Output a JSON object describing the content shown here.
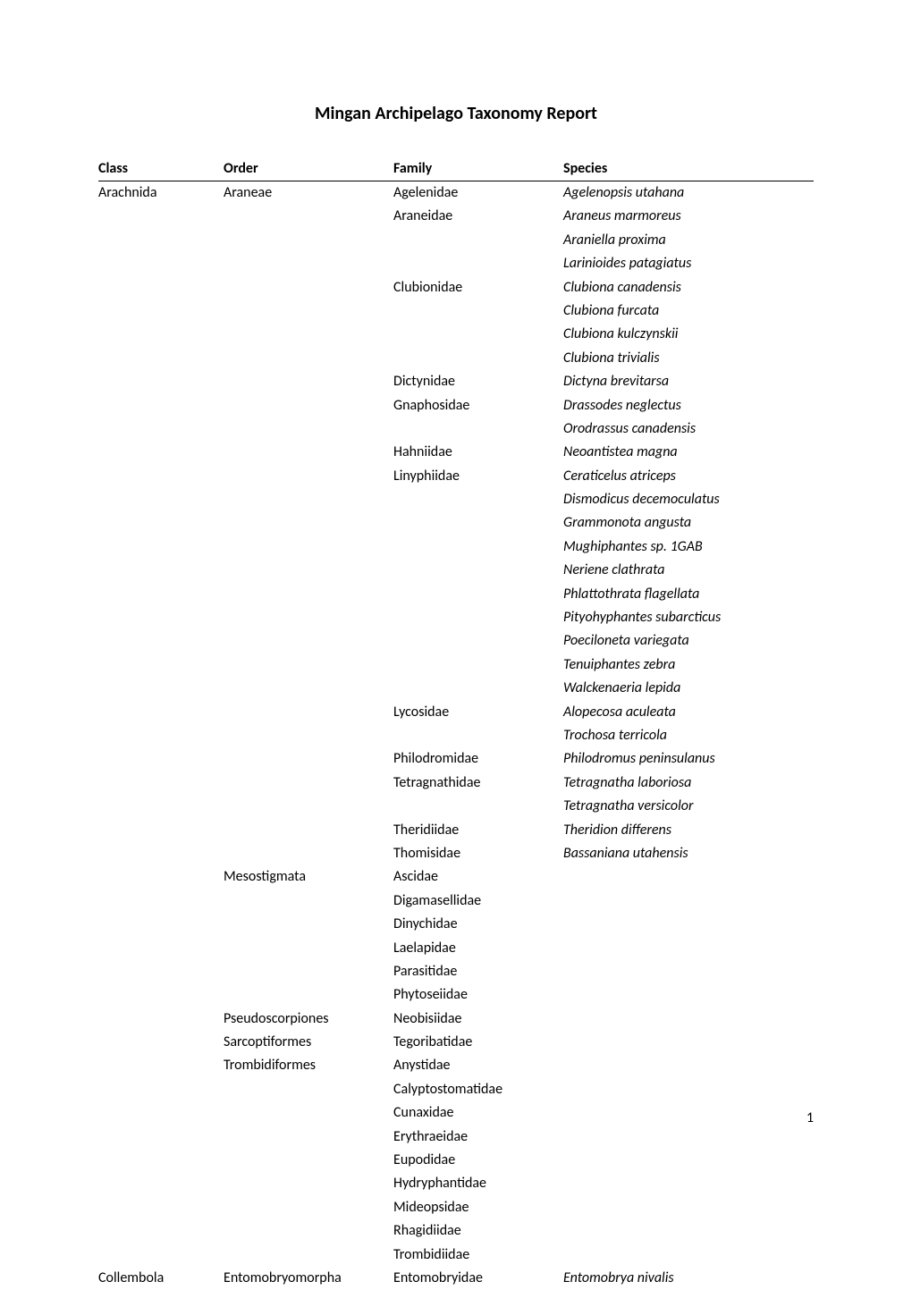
{
  "title": "Mingan Archipelago Taxonomy Report",
  "headers": {
    "class": "Class",
    "order": "Order",
    "family": "Family",
    "species": "Species"
  },
  "page_number": "1",
  "rows": [
    {
      "class": "Arachnida",
      "order": "Araneae",
      "family": "Agelenidae",
      "species": "Agelenopsis utahana"
    },
    {
      "class": "",
      "order": "",
      "family": "Araneidae",
      "species": "Araneus marmoreus"
    },
    {
      "class": "",
      "order": "",
      "family": "",
      "species": "Araniella proxima"
    },
    {
      "class": "",
      "order": "",
      "family": "",
      "species": "Larinioides patagiatus"
    },
    {
      "class": "",
      "order": "",
      "family": "Clubionidae",
      "species": "Clubiona canadensis"
    },
    {
      "class": "",
      "order": "",
      "family": "",
      "species": "Clubiona furcata"
    },
    {
      "class": "",
      "order": "",
      "family": "",
      "species": "Clubiona kulczynskii"
    },
    {
      "class": "",
      "order": "",
      "family": "",
      "species": "Clubiona trivialis"
    },
    {
      "class": "",
      "order": "",
      "family": "Dictynidae",
      "species": "Dictyna brevitarsa"
    },
    {
      "class": "",
      "order": "",
      "family": "Gnaphosidae",
      "species": "Drassodes neglectus"
    },
    {
      "class": "",
      "order": "",
      "family": "",
      "species": "Orodrassus canadensis"
    },
    {
      "class": "",
      "order": "",
      "family": "Hahniidae",
      "species": "Neoantistea magna"
    },
    {
      "class": "",
      "order": "",
      "family": "Linyphiidae",
      "species": "Ceraticelus atriceps"
    },
    {
      "class": "",
      "order": "",
      "family": "",
      "species": "Dismodicus decemoculatus"
    },
    {
      "class": "",
      "order": "",
      "family": "",
      "species": "Grammonota angusta"
    },
    {
      "class": "",
      "order": "",
      "family": "",
      "species": "Mughiphantes sp. 1GAB"
    },
    {
      "class": "",
      "order": "",
      "family": "",
      "species": "Neriene clathrata"
    },
    {
      "class": "",
      "order": "",
      "family": "",
      "species": "Phlattothrata flagellata"
    },
    {
      "class": "",
      "order": "",
      "family": "",
      "species": "Pityohyphantes subarcticus"
    },
    {
      "class": "",
      "order": "",
      "family": "",
      "species": "Poeciloneta variegata"
    },
    {
      "class": "",
      "order": "",
      "family": "",
      "species": "Tenuiphantes zebra"
    },
    {
      "class": "",
      "order": "",
      "family": "",
      "species": "Walckenaeria lepida"
    },
    {
      "class": "",
      "order": "",
      "family": "Lycosidae",
      "species": "Alopecosa aculeata"
    },
    {
      "class": "",
      "order": "",
      "family": "",
      "species": "Trochosa terricola"
    },
    {
      "class": "",
      "order": "",
      "family": "Philodromidae",
      "species": "Philodromus peninsulanus"
    },
    {
      "class": "",
      "order": "",
      "family": "Tetragnathidae",
      "species": "Tetragnatha laboriosa"
    },
    {
      "class": "",
      "order": "",
      "family": "",
      "species": "Tetragnatha versicolor"
    },
    {
      "class": "",
      "order": "",
      "family": "Theridiidae",
      "species": "Theridion differens"
    },
    {
      "class": "",
      "order": "",
      "family": "Thomisidae",
      "species": "Bassaniana utahensis"
    },
    {
      "class": "",
      "order": "Mesostigmata",
      "family": "Ascidae",
      "species": ""
    },
    {
      "class": "",
      "order": "",
      "family": "Digamasellidae",
      "species": ""
    },
    {
      "class": "",
      "order": "",
      "family": "Dinychidae",
      "species": ""
    },
    {
      "class": "",
      "order": "",
      "family": "Laelapidae",
      "species": ""
    },
    {
      "class": "",
      "order": "",
      "family": "Parasitidae",
      "species": ""
    },
    {
      "class": "",
      "order": "",
      "family": "Phytoseiidae",
      "species": ""
    },
    {
      "class": "",
      "order": "Pseudoscorpiones",
      "family": "Neobisiidae",
      "species": ""
    },
    {
      "class": "",
      "order": "Sarcoptiformes",
      "family": "Tegoribatidae",
      "species": ""
    },
    {
      "class": "",
      "order": "Trombidiformes",
      "family": "Anystidae",
      "species": ""
    },
    {
      "class": "",
      "order": "",
      "family": "Calyptostomatidae",
      "species": ""
    },
    {
      "class": "",
      "order": "",
      "family": "Cunaxidae",
      "species": ""
    },
    {
      "class": "",
      "order": "",
      "family": "Erythraeidae",
      "species": ""
    },
    {
      "class": "",
      "order": "",
      "family": "Eupodidae",
      "species": ""
    },
    {
      "class": "",
      "order": "",
      "family": "Hydryphantidae",
      "species": ""
    },
    {
      "class": "",
      "order": "",
      "family": "Mideopsidae",
      "species": ""
    },
    {
      "class": "",
      "order": "",
      "family": "Rhagidiidae",
      "species": ""
    },
    {
      "class": "",
      "order": "",
      "family": "Trombidiidae",
      "species": ""
    },
    {
      "class": "Collembola",
      "order": "Entomobryomorpha",
      "family": "Entomobryidae",
      "species": "Entomobrya nivalis"
    }
  ]
}
